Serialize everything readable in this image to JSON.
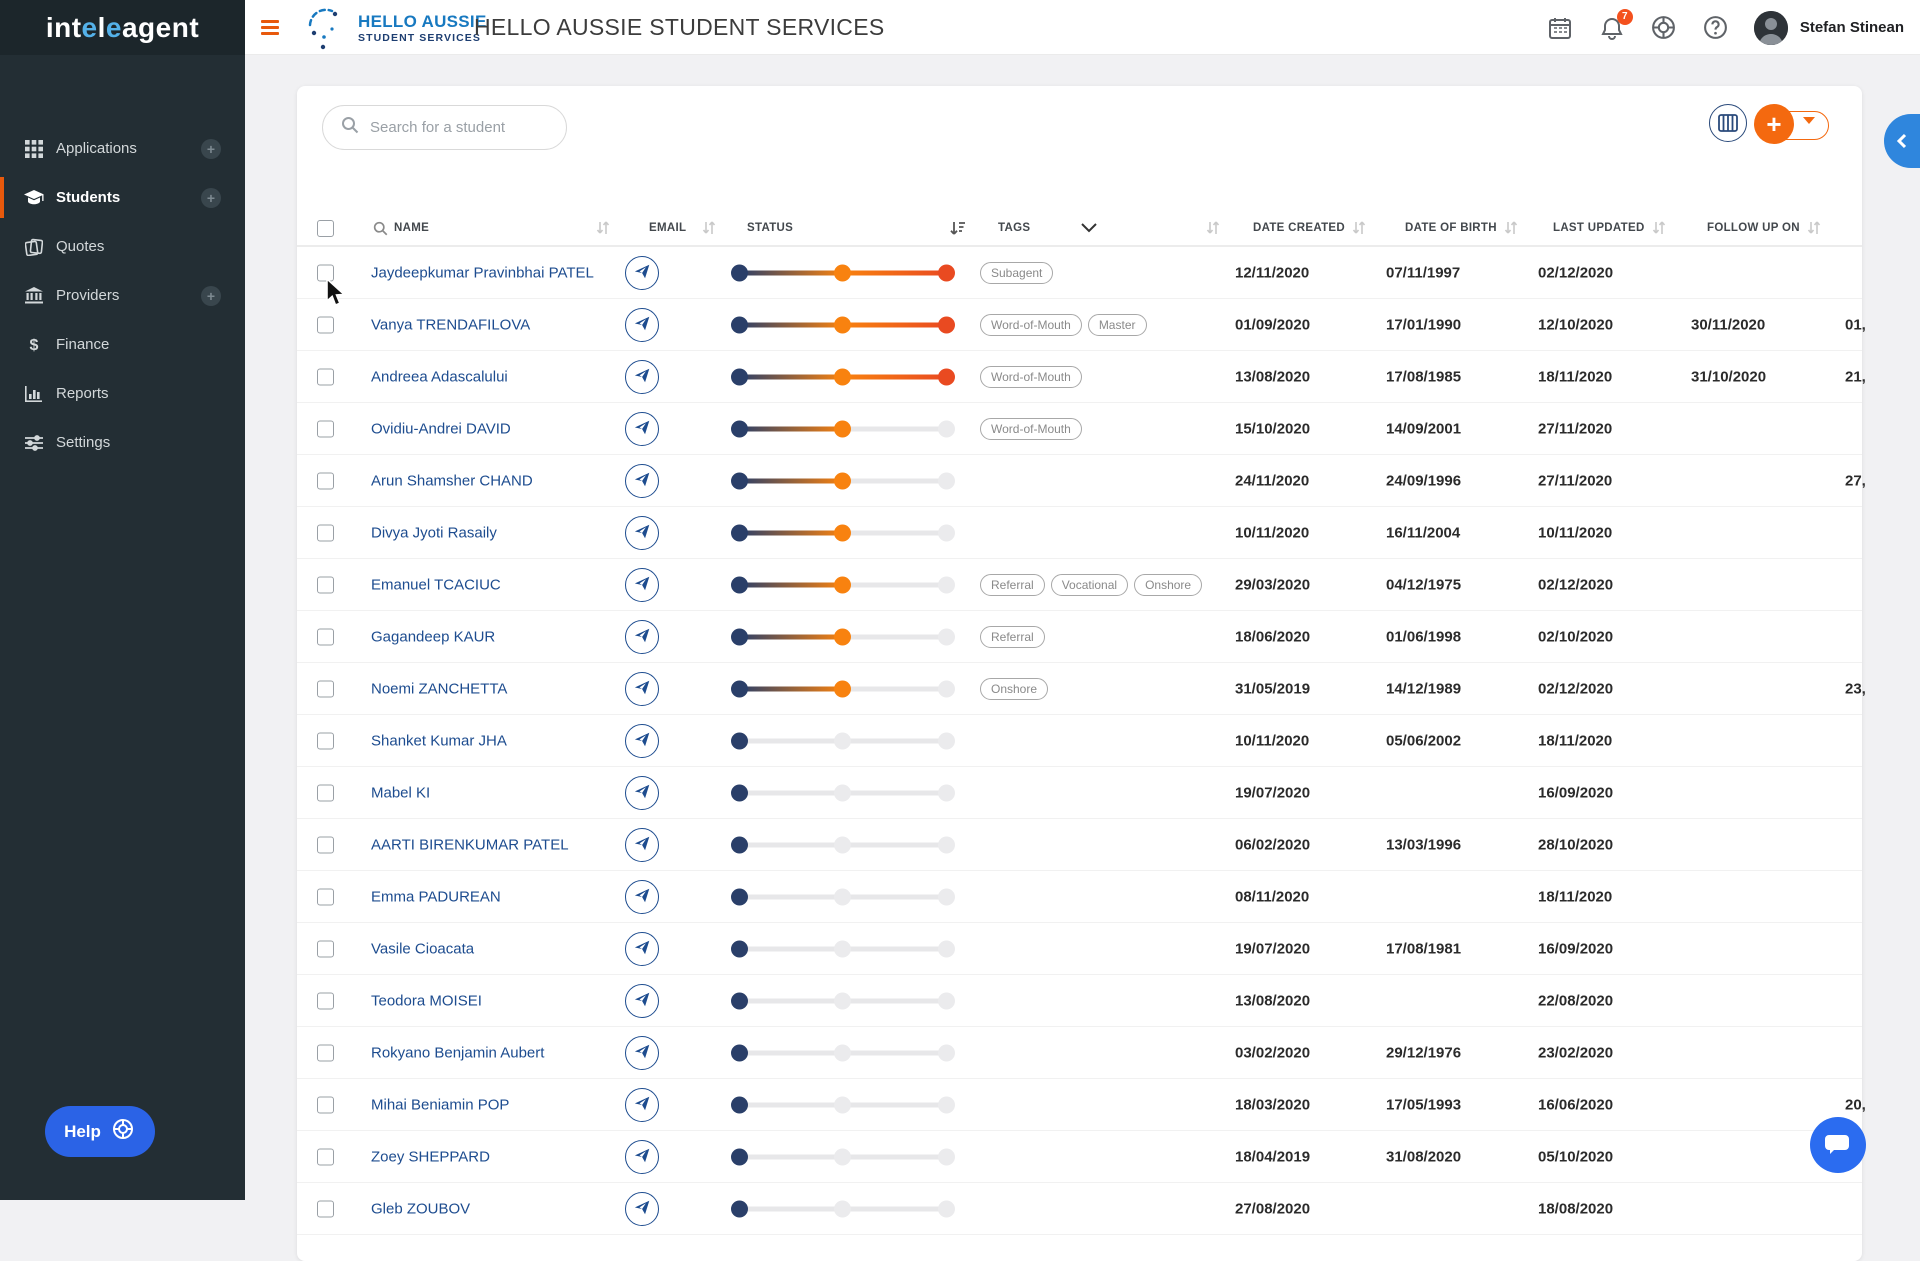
{
  "brand": {
    "p1": "int",
    "p2": "e",
    "p3": "l",
    "p4": "e",
    "p5": "agent"
  },
  "topbar": {
    "client_logo": {
      "line1": "HELLO AUSSIE",
      "line2": "STUDENT SERVICES"
    },
    "title": "HELLO AUSSIE STUDENT SERVICES",
    "notifications_count": "7",
    "user_name": "Stefan Stinean"
  },
  "sidebar": {
    "items": [
      {
        "label": "Applications",
        "icon": "grid-icon",
        "has_add": true,
        "active": false
      },
      {
        "label": "Students",
        "icon": "graduation-cap-icon",
        "has_add": true,
        "active": true
      },
      {
        "label": "Quotes",
        "icon": "quotes-icon",
        "has_add": false,
        "active": false
      },
      {
        "label": "Providers",
        "icon": "bank-icon",
        "has_add": true,
        "active": false
      },
      {
        "label": "Finance",
        "icon": "dollar-icon",
        "has_add": false,
        "active": false
      },
      {
        "label": "Reports",
        "icon": "bar-chart-icon",
        "has_add": false,
        "active": false
      },
      {
        "label": "Settings",
        "icon": "sliders-icon",
        "has_add": false,
        "active": false
      }
    ],
    "help_label": "Help"
  },
  "search": {
    "placeholder": "Search for a student"
  },
  "table": {
    "columns": [
      "NAME",
      "EMAIL",
      "STATUS",
      "TAGS",
      "DATE CREATED",
      "DATE OF BIRTH",
      "LAST UPDATED",
      "FOLLOW UP ON"
    ],
    "rows": [
      {
        "name": "Jaydeepkumar Pravinbhai PATEL",
        "status": 3,
        "tags": [
          "Subagent"
        ],
        "created": "12/11/2020",
        "dob": "07/11/1997",
        "updated": "02/12/2020",
        "follow": "",
        "clipped": ""
      },
      {
        "name": "Vanya TRENDAFILOVA",
        "status": 3,
        "tags": [
          "Word-of-Mouth",
          "Master"
        ],
        "created": "01/09/2020",
        "dob": "17/01/1990",
        "updated": "12/10/2020",
        "follow": "30/11/2020",
        "clipped": "01,"
      },
      {
        "name": "Andreea Adascalului",
        "status": 3,
        "tags": [
          "Word-of-Mouth"
        ],
        "created": "13/08/2020",
        "dob": "17/08/1985",
        "updated": "18/11/2020",
        "follow": "31/10/2020",
        "clipped": "21,"
      },
      {
        "name": "Ovidiu-Andrei DAVID",
        "status": 2,
        "tags": [
          "Word-of-Mouth"
        ],
        "created": "15/10/2020",
        "dob": "14/09/2001",
        "updated": "27/11/2020",
        "follow": "",
        "clipped": ""
      },
      {
        "name": "Arun Shamsher CHAND",
        "status": 2,
        "tags": [],
        "created": "24/11/2020",
        "dob": "24/09/1996",
        "updated": "27/11/2020",
        "follow": "",
        "clipped": "27,"
      },
      {
        "name": "Divya Jyoti Rasaily",
        "status": 2,
        "tags": [],
        "created": "10/11/2020",
        "dob": "16/11/2004",
        "updated": "10/11/2020",
        "follow": "",
        "clipped": ""
      },
      {
        "name": "Emanuel TCACIUC",
        "status": 2,
        "tags": [
          "Referral",
          "Vocational",
          "Onshore"
        ],
        "created": "29/03/2020",
        "dob": "04/12/1975",
        "updated": "02/12/2020",
        "follow": "",
        "clipped": ""
      },
      {
        "name": "Gagandeep KAUR",
        "status": 2,
        "tags": [
          "Referral"
        ],
        "created": "18/06/2020",
        "dob": "01/06/1998",
        "updated": "02/10/2020",
        "follow": "",
        "clipped": ""
      },
      {
        "name": "Noemi ZANCHETTA",
        "status": 2,
        "tags": [
          "Onshore"
        ],
        "created": "31/05/2019",
        "dob": "14/12/1989",
        "updated": "02/12/2020",
        "follow": "",
        "clipped": "23,"
      },
      {
        "name": "Shanket Kumar JHA",
        "status": 1,
        "tags": [],
        "created": "10/11/2020",
        "dob": "05/06/2002",
        "updated": "18/11/2020",
        "follow": "",
        "clipped": ""
      },
      {
        "name": "Mabel KI",
        "status": 1,
        "tags": [],
        "created": "19/07/2020",
        "dob": "",
        "updated": "16/09/2020",
        "follow": "",
        "clipped": ""
      },
      {
        "name": "AARTI BIRENKUMAR PATEL",
        "status": 1,
        "tags": [],
        "created": "06/02/2020",
        "dob": "13/03/1996",
        "updated": "28/10/2020",
        "follow": "",
        "clipped": ""
      },
      {
        "name": "Emma PADUREAN",
        "status": 1,
        "tags": [],
        "created": "08/11/2020",
        "dob": "",
        "updated": "18/11/2020",
        "follow": "",
        "clipped": ""
      },
      {
        "name": "Vasile Cioacata",
        "status": 1,
        "tags": [],
        "created": "19/07/2020",
        "dob": "17/08/1981",
        "updated": "16/09/2020",
        "follow": "",
        "clipped": ""
      },
      {
        "name": "Teodora MOISEI",
        "status": 1,
        "tags": [],
        "created": "13/08/2020",
        "dob": "",
        "updated": "22/08/2020",
        "follow": "",
        "clipped": ""
      },
      {
        "name": "Rokyano Benjamin Aubert",
        "status": 1,
        "tags": [],
        "created": "03/02/2020",
        "dob": "29/12/1976",
        "updated": "23/02/2020",
        "follow": "",
        "clipped": ""
      },
      {
        "name": "Mihai Beniamin POP",
        "status": 1,
        "tags": [],
        "created": "18/03/2020",
        "dob": "17/05/1993",
        "updated": "16/06/2020",
        "follow": "",
        "clipped": "20,"
      },
      {
        "name": "Zoey SHEPPARD",
        "status": 1,
        "tags": [],
        "created": "18/04/2019",
        "dob": "31/08/2020",
        "updated": "05/10/2020",
        "follow": "",
        "clipped": ""
      },
      {
        "name": "Gleb ZOUBOV",
        "status": 1,
        "tags": [],
        "created": "27/08/2020",
        "dob": "",
        "updated": "18/08/2020",
        "follow": "",
        "clipped": "",
        "partial": true
      }
    ]
  },
  "colors": {
    "accent_orange": "#f4690f",
    "slider_navy": "#2a3f69",
    "slider_orange": "#f8820f",
    "slider_red": "#e94a21",
    "link_blue": "#1d4c8f",
    "tab_blue": "#2f86dd",
    "chat_blue": "#2b6cf0",
    "badge_red": "#f4511e"
  }
}
